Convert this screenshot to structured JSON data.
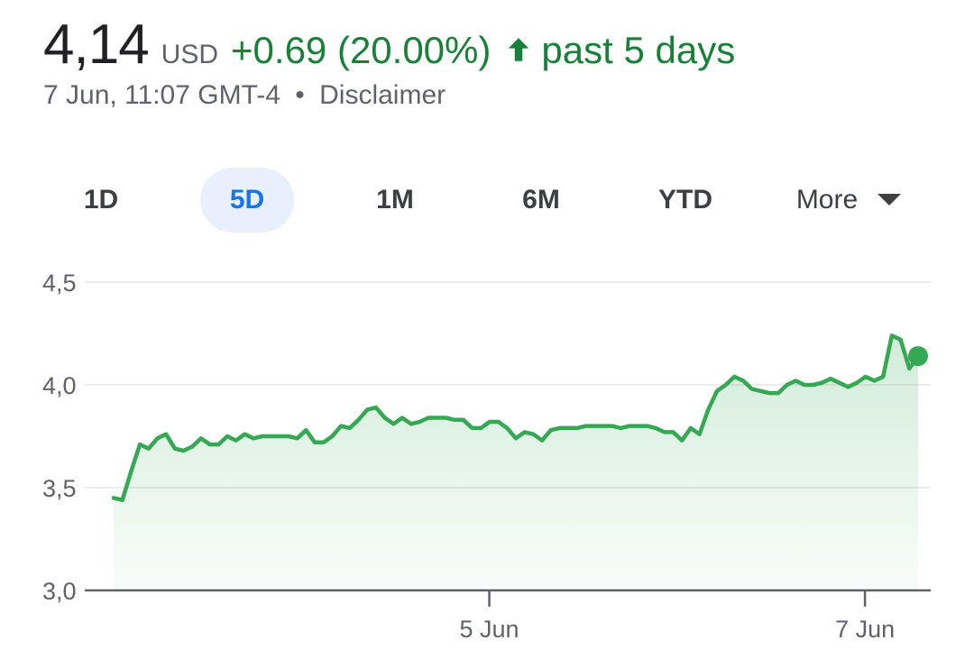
{
  "header": {
    "price": "4,14",
    "currency": "USD",
    "change": "+0.69 (20.00%)",
    "period": "past 5 days",
    "timestamp": "7 Jun, 11:07 GMT-4",
    "separator": "•",
    "disclaimer": "Disclaimer"
  },
  "tabs": {
    "items": [
      {
        "label": "1D",
        "active": false
      },
      {
        "label": "5D",
        "active": true
      },
      {
        "label": "1M",
        "active": false
      },
      {
        "label": "6M",
        "active": false
      },
      {
        "label": "YTD",
        "active": false
      }
    ],
    "more_label": "More"
  },
  "colors": {
    "positive": "#188038",
    "line": "#34a853",
    "active_tab_bg": "#e8f0fe",
    "active_tab_text": "#1a73e8",
    "grid": "#ececec",
    "axis": "#5f6368"
  },
  "chart_data": {
    "type": "area",
    "title": "",
    "xlabel": "",
    "ylabel": "",
    "ylim": [
      3.0,
      4.5
    ],
    "yticks": [
      3.0,
      3.5,
      4.0,
      4.5
    ],
    "ytick_labels": [
      "3,0",
      "3,5",
      "4,0",
      "4,5"
    ],
    "x_tick_labels": [
      {
        "label": "5 Jun",
        "x": 49.5
      },
      {
        "label": "7 Jun",
        "x": 99
      }
    ],
    "xlim": [
      0,
      106
    ],
    "grid": true,
    "series": [
      {
        "values": [
          3.45,
          3.44,
          3.58,
          3.71,
          3.69,
          3.74,
          3.76,
          3.69,
          3.68,
          3.7,
          3.74,
          3.71,
          3.71,
          3.75,
          3.73,
          3.76,
          3.74,
          3.75,
          3.75,
          3.75,
          3.75,
          3.74,
          3.78,
          3.72,
          3.72,
          3.75,
          3.8,
          3.79,
          3.83,
          3.88,
          3.89,
          3.84,
          3.81,
          3.84,
          3.81,
          3.82,
          3.84,
          3.84,
          3.84,
          3.83,
          3.83,
          3.79,
          3.79,
          3.82,
          3.82,
          3.79,
          3.74,
          3.77,
          3.76,
          3.73,
          3.78,
          3.79,
          3.79,
          3.79,
          3.8,
          3.8,
          3.8,
          3.8,
          3.79,
          3.8,
          3.8,
          3.8,
          3.79,
          3.77,
          3.77,
          3.73,
          3.79,
          3.76,
          3.88,
          3.97,
          4.0,
          4.04,
          4.02,
          3.98,
          3.97,
          3.96,
          3.96,
          4.0,
          4.02,
          4.0,
          4.0,
          4.01,
          4.03,
          4.01,
          3.99,
          4.01,
          4.04,
          4.02,
          4.04,
          4.24,
          4.22,
          4.08,
          4.14
        ]
      }
    ],
    "last_point_marker": true
  }
}
